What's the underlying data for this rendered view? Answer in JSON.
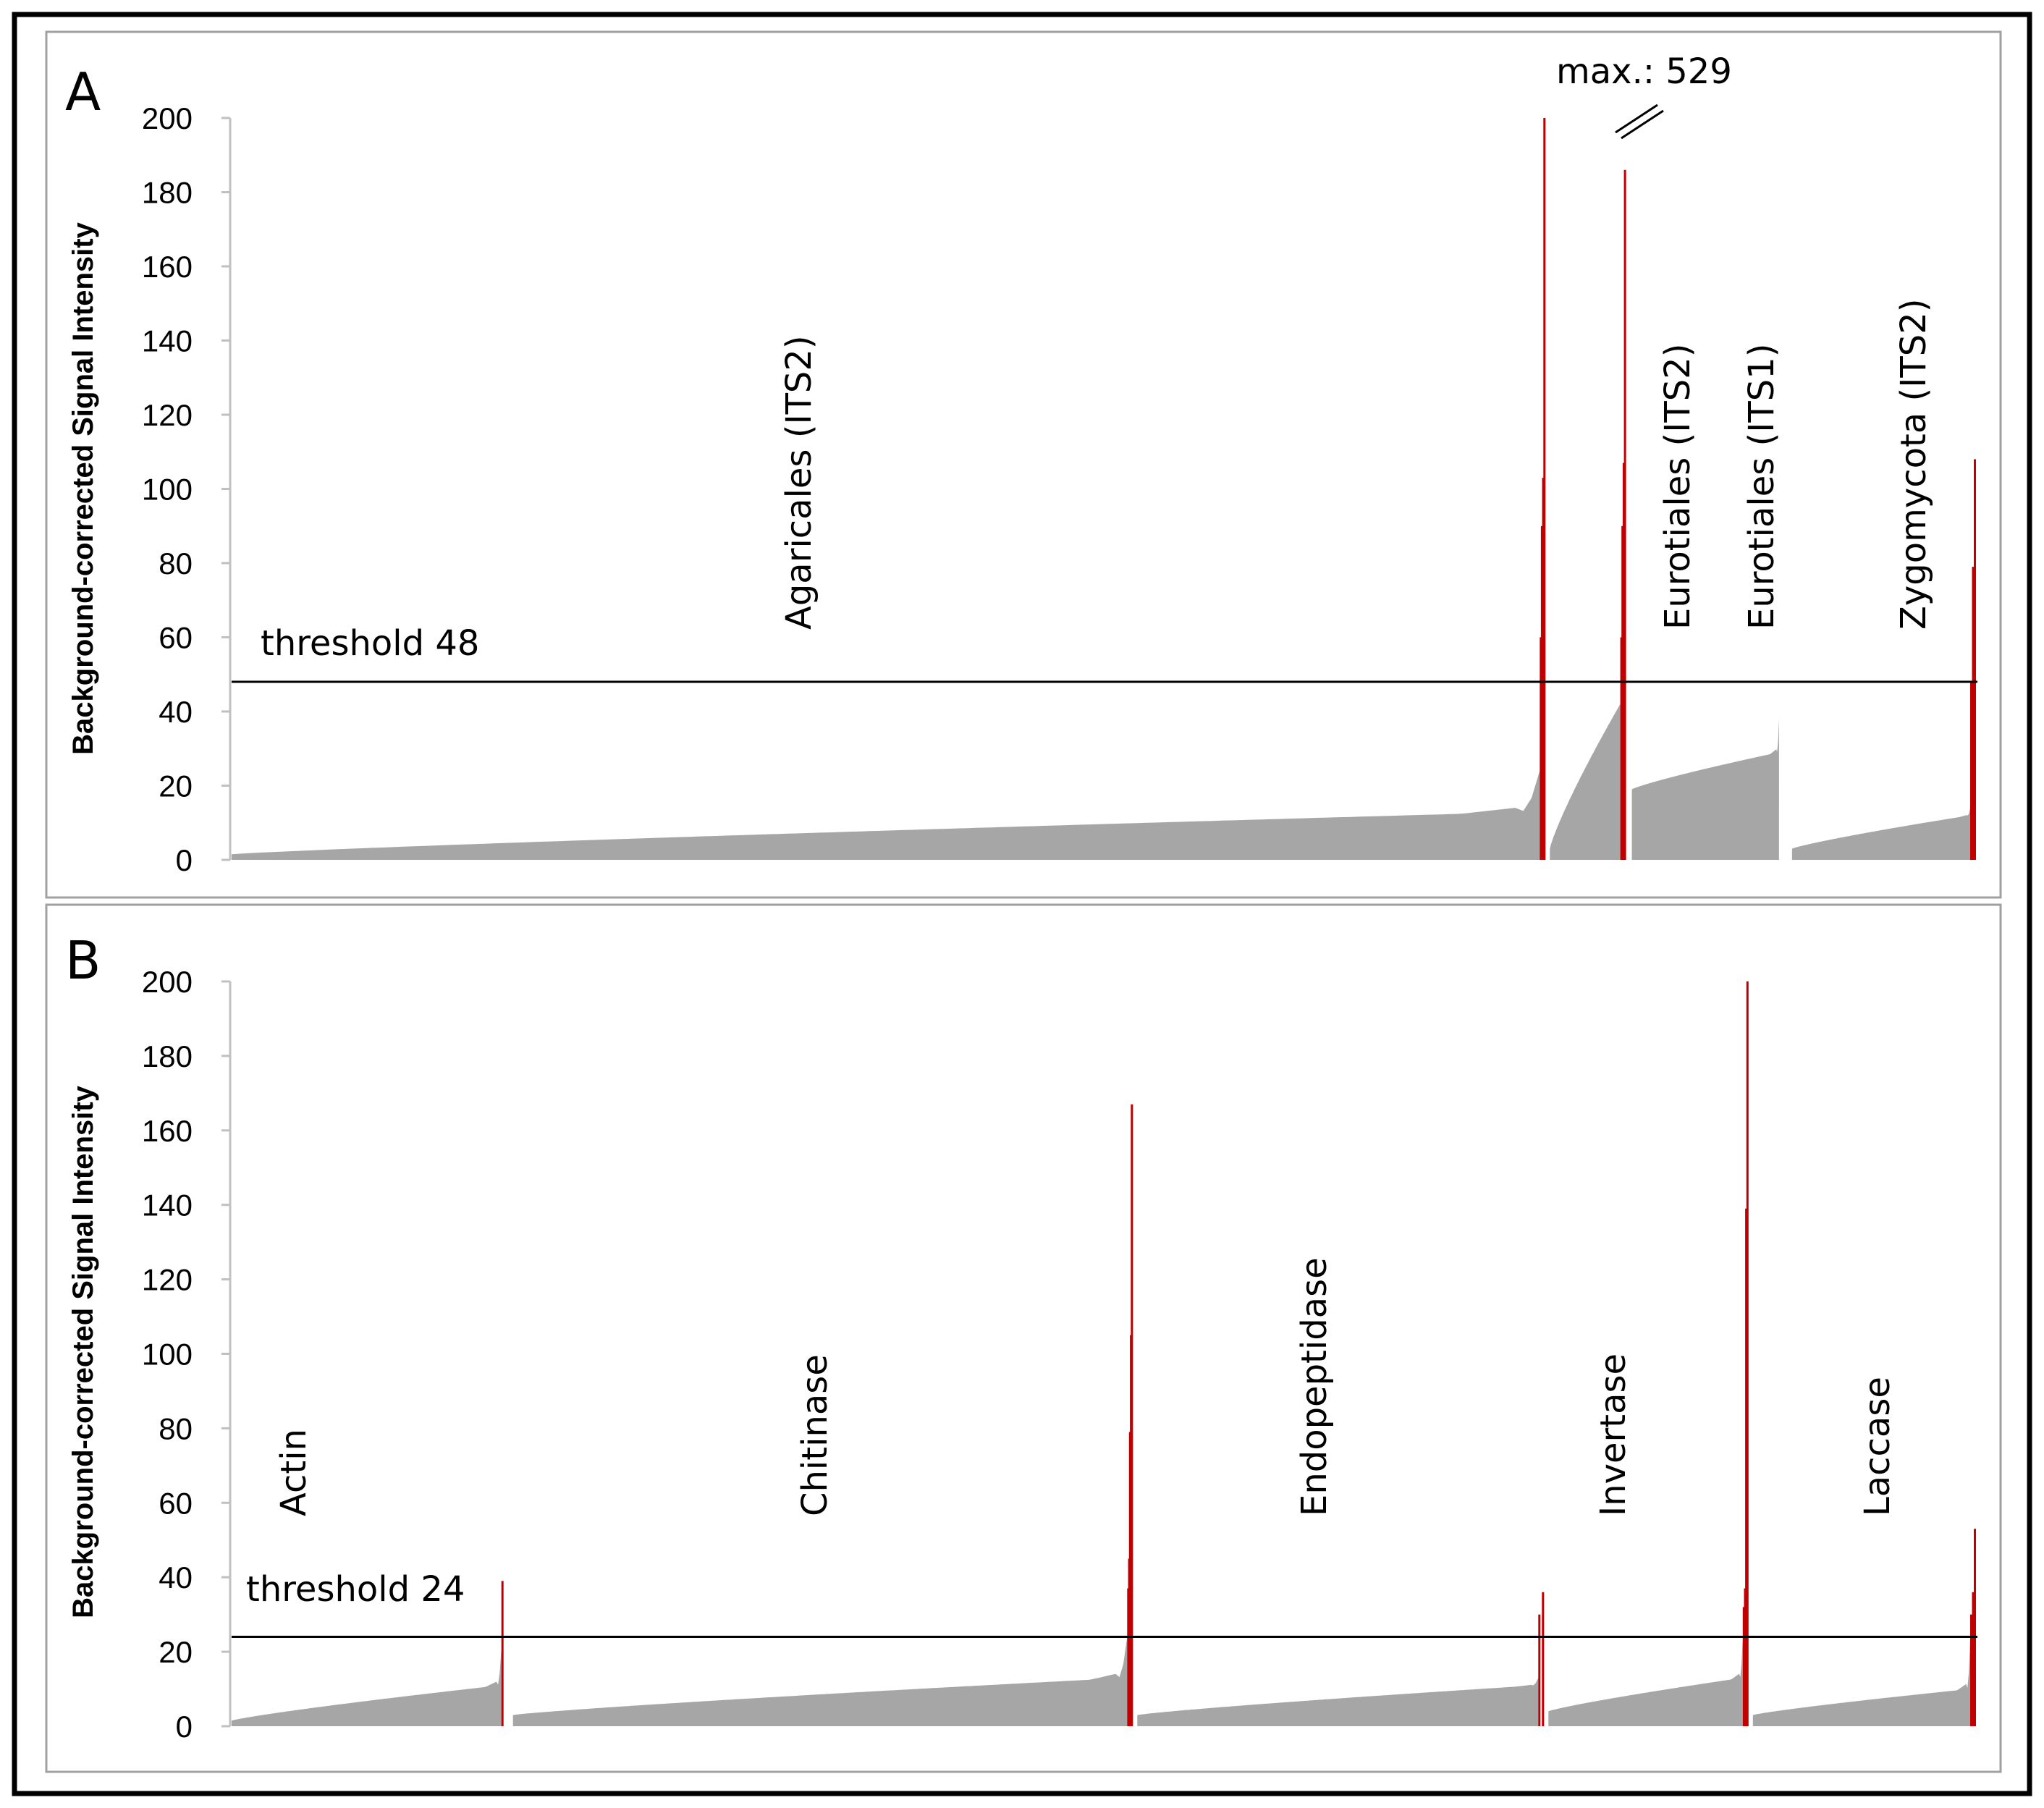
{
  "colors": {
    "gray": "#a6a6a6",
    "red": "#c00000",
    "axis": "#c0c0c0",
    "frame_inner": "#a0a0a0",
    "frame_outer": "#000000"
  },
  "chart_data": [
    {
      "type": "bar",
      "panel": "A",
      "ylabel": "Background-corrected Signal Intensity",
      "ylim": [
        0,
        200
      ],
      "yticks": [
        "0",
        "20",
        "40",
        "60",
        "80",
        "100",
        "120",
        "140",
        "160",
        "180",
        "200"
      ],
      "threshold": {
        "value": 48,
        "label": "threshold 48"
      },
      "max_note": {
        "label": "max.: 529",
        "value": 529
      },
      "groups": [
        {
          "name": "Agaricales (ITS2)",
          "weight": 1.0,
          "start": 1.5,
          "end": 13,
          "tail": 24,
          "red_peaks": [
            60,
            90,
            103,
            200
          ],
          "max_value": 529
        },
        {
          "name": "Eurotiales (ITS2)",
          "weight": 0.058,
          "start": 3,
          "end": 42,
          "tail": 42,
          "red_peaks": [
            60,
            90,
            107,
            186
          ]
        },
        {
          "name": "Eurotiales (ITS1)",
          "weight": 0.112,
          "start": 19,
          "end": 29,
          "tail": 38,
          "red_peaks": []
        },
        {
          "name": "Zygomycota (ITS2)",
          "weight": 0.14,
          "start": 3,
          "end": 12,
          "tail": 14,
          "red_peaks": [
            48,
            79,
            108
          ]
        }
      ]
    },
    {
      "type": "bar",
      "panel": "B",
      "ylabel": "Background-corrected Signal Intensity",
      "ylim": [
        0,
        200
      ],
      "yticks": [
        "0",
        "20",
        "40",
        "60",
        "80",
        "100",
        "120",
        "140",
        "160",
        "180",
        "200"
      ],
      "threshold": {
        "value": 24,
        "label": "threshold 24"
      },
      "groups": [
        {
          "name": "Actin",
          "weight": 0.168,
          "start": 1.5,
          "end": 11,
          "tail": 21,
          "red_peaks": [
            39
          ]
        },
        {
          "name": "Chitinase",
          "weight": 0.378,
          "start": 3,
          "end": 13,
          "tail": 24,
          "red_peaks": [
            37,
            45,
            79,
            105,
            167
          ]
        },
        {
          "name": "Endopeptidase",
          "weight": 0.248,
          "start": 3,
          "end": 11,
          "tail": 13,
          "red_peaks": [
            30,
            36
          ]
        },
        {
          "name": "Invertase",
          "weight": 0.122,
          "start": 4,
          "end": 13,
          "tail": 24,
          "red_peaks": [
            32,
            37,
            139,
            200
          ]
        },
        {
          "name": "Laccase",
          "weight": 0.136,
          "start": 3,
          "end": 10,
          "tail": 23,
          "red_peaks": [
            30,
            36,
            53
          ]
        }
      ]
    }
  ]
}
